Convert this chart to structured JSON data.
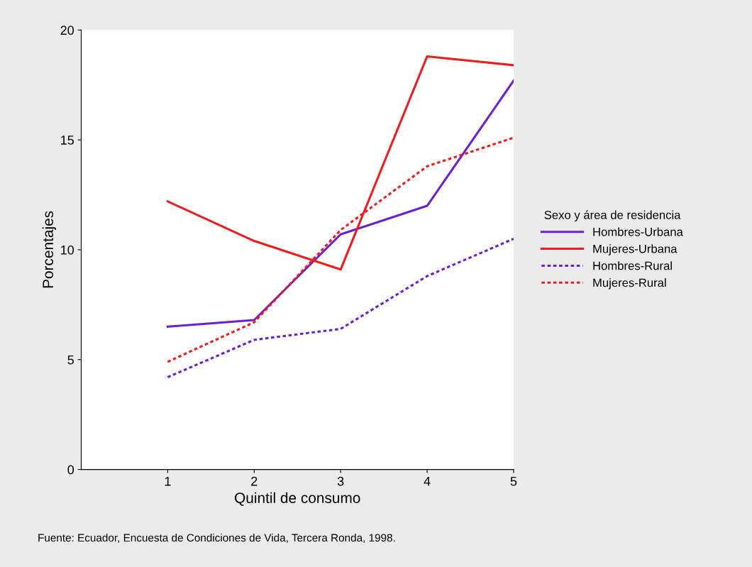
{
  "chart_data": {
    "type": "line",
    "xlabel": "Quintil de consumo",
    "ylabel": "Porcentajes",
    "x": [
      1,
      2,
      3,
      4,
      5
    ],
    "series": [
      {
        "name": "Hombres-Urbana",
        "color": "#6a1fd0",
        "line_style": "solid",
        "values": [
          6.5,
          6.8,
          10.7,
          12.0,
          17.7
        ]
      },
      {
        "name": "Mujeres-Urbana",
        "color": "#ee1c1c",
        "line_style": "solid",
        "values": [
          12.2,
          10.4,
          9.1,
          18.8,
          18.4
        ]
      },
      {
        "name": "Hombres-Rural",
        "color": "#6a1fd0",
        "line_style": "dotted",
        "values": [
          4.2,
          5.9,
          6.4,
          8.8,
          10.5
        ]
      },
      {
        "name": "Mujeres-Rural",
        "color": "#ee1c1c",
        "line_style": "dotted",
        "values": [
          4.9,
          6.7,
          10.9,
          13.8,
          15.1
        ]
      }
    ],
    "xlim": [
      0,
      5
    ],
    "xticks": [
      1,
      2,
      3,
      4,
      5
    ],
    "ylim": [
      0,
      20
    ],
    "yticks": [
      0,
      5,
      10,
      15,
      20
    ],
    "grid": false,
    "legend": "right",
    "legend_title": "Sexo y área de residencia",
    "annotations": [
      "Fuente: Ecuador, Encuesta de Condiciones de Vida, Tercera Ronda, 1998."
    ]
  }
}
